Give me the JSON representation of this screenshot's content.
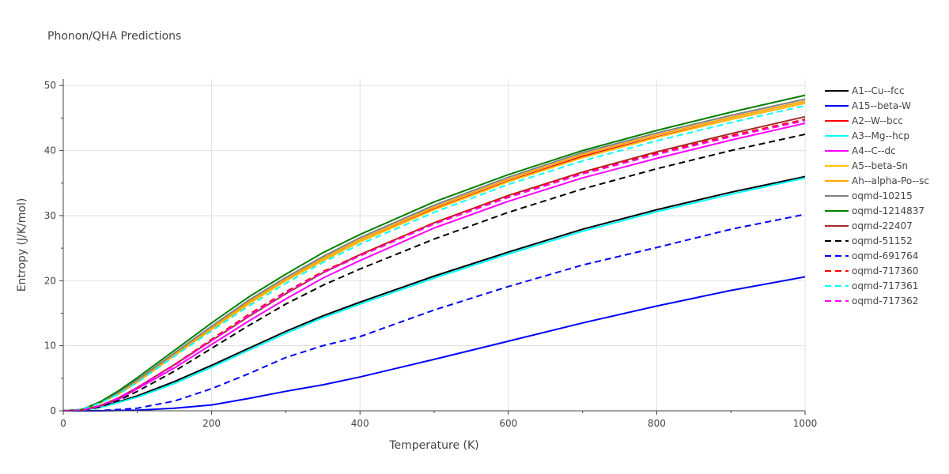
{
  "chart_data": {
    "type": "line",
    "title": "Phonon/QHA Predictions",
    "xlabel": "Temperature (K)",
    "ylabel": "Entropy (J/K/mol)",
    "xlim": [
      0,
      1000
    ],
    "ylim": [
      0,
      51
    ],
    "x_ticks": [
      0,
      200,
      400,
      600,
      800,
      1000
    ],
    "y_ticks": [
      0,
      10,
      20,
      30,
      40,
      50
    ],
    "grid": true,
    "legend_position": "right",
    "x": [
      0,
      25,
      50,
      75,
      100,
      150,
      200,
      250,
      300,
      350,
      400,
      500,
      600,
      700,
      800,
      900,
      1000
    ],
    "series": [
      {
        "name": "A1--Cu--fcc",
        "color": "#000000",
        "dash": "solid",
        "values": [
          0,
          0.1,
          0.6,
          1.4,
          2.3,
          4.5,
          7.0,
          9.6,
          12.2,
          14.6,
          16.7,
          20.7,
          24.4,
          27.9,
          30.9,
          33.6,
          36.0
        ]
      },
      {
        "name": "A15--beta-W",
        "color": "#0000ff",
        "dash": "solid",
        "values": [
          0,
          0,
          0,
          0.05,
          0.1,
          0.4,
          0.9,
          1.9,
          3.0,
          4.0,
          5.2,
          7.9,
          10.7,
          13.5,
          16.1,
          18.5,
          20.6
        ]
      },
      {
        "name": "A2--W--bcc",
        "color": "#ff0000",
        "dash": "solid",
        "values": [
          0,
          0.2,
          1.3,
          2.8,
          4.6,
          8.6,
          12.6,
          16.6,
          20.0,
          23.1,
          26.0,
          31.0,
          35.3,
          39.1,
          42.1,
          44.8,
          47.3
        ]
      },
      {
        "name": "A3--Mg--hcp",
        "color": "#00ffff",
        "dash": "solid",
        "values": [
          0,
          0.1,
          0.5,
          1.3,
          2.1,
          4.2,
          6.7,
          9.3,
          11.9,
          14.3,
          16.4,
          20.4,
          24.1,
          27.6,
          30.6,
          33.3,
          35.8
        ]
      },
      {
        "name": "A4--C--dc",
        "color": "#ff00ff",
        "dash": "solid",
        "values": [
          0,
          0.1,
          0.7,
          1.8,
          3.4,
          6.6,
          10.2,
          13.8,
          17.2,
          20.4,
          23.1,
          28.1,
          32.2,
          35.8,
          38.8,
          41.6,
          44.2
        ]
      },
      {
        "name": "A5--beta-Sn",
        "color": "#ffbf00",
        "dash": "solid",
        "values": [
          0,
          0.2,
          1.2,
          2.6,
          4.4,
          8.5,
          12.5,
          16.4,
          20.0,
          23.1,
          26.0,
          30.9,
          35.2,
          38.9,
          42.0,
          44.8,
          47.3
        ]
      },
      {
        "name": "Ah--alpha-Po--sc",
        "color": "#ffa500",
        "dash": "solid",
        "values": [
          0,
          0.2,
          1.2,
          2.7,
          4.5,
          8.6,
          12.7,
          16.7,
          20.2,
          23.4,
          26.3,
          31.3,
          35.6,
          39.4,
          42.4,
          45.1,
          47.6
        ]
      },
      {
        "name": "oqmd-10215",
        "color": "#808080",
        "dash": "solid",
        "values": [
          0,
          0.2,
          1.3,
          2.9,
          4.8,
          8.9,
          13.0,
          17.0,
          20.5,
          23.7,
          26.6,
          31.6,
          35.9,
          39.7,
          42.7,
          45.4,
          47.9
        ]
      },
      {
        "name": "oqmd-1214837",
        "color": "#008000",
        "dash": "solid",
        "values": [
          0,
          0.2,
          1.4,
          3.1,
          5.1,
          9.3,
          13.5,
          17.5,
          21.0,
          24.3,
          27.1,
          32.1,
          36.3,
          40.0,
          43.1,
          45.9,
          48.5
        ]
      },
      {
        "name": "oqmd-22407",
        "color": "#a52a2a",
        "dash": "solid",
        "values": [
          0,
          0.1,
          0.8,
          2.0,
          3.6,
          7.1,
          10.8,
          14.5,
          18.0,
          21.2,
          24.0,
          28.9,
          33.1,
          36.7,
          39.8,
          42.6,
          45.2
        ]
      },
      {
        "name": "oqmd-51152",
        "color": "#000000",
        "dash": "dash",
        "values": [
          0,
          0.1,
          0.6,
          1.6,
          3.0,
          6.1,
          9.6,
          13.1,
          16.4,
          19.3,
          21.8,
          26.4,
          30.5,
          34.1,
          37.2,
          40.0,
          42.5
        ]
      },
      {
        "name": "oqmd-691764",
        "color": "#0000ff",
        "dash": "dash",
        "values": [
          0,
          0,
          0.05,
          0.2,
          0.4,
          1.5,
          3.4,
          5.7,
          8.2,
          10.0,
          11.4,
          15.5,
          19.1,
          22.4,
          25.1,
          27.9,
          30.2
        ]
      },
      {
        "name": "oqmd-717360",
        "color": "#ff0000",
        "dash": "dash",
        "values": [
          0,
          0.1,
          0.8,
          2.0,
          3.6,
          7.1,
          11.0,
          14.8,
          18.3,
          21.4,
          24.0,
          28.9,
          33.0,
          36.6,
          39.6,
          42.3,
          44.8
        ]
      },
      {
        "name": "oqmd-717361",
        "color": "#00ffff",
        "dash": "dash",
        "values": [
          0,
          0.2,
          1.2,
          2.6,
          4.4,
          8.4,
          12.3,
          16.1,
          19.6,
          22.8,
          25.6,
          30.5,
          34.8,
          38.4,
          41.5,
          44.3,
          46.9
        ]
      },
      {
        "name": "oqmd-717362",
        "color": "#ff00ff",
        "dash": "dash",
        "values": [
          0,
          0.1,
          0.8,
          2.0,
          3.6,
          7.0,
          10.8,
          14.6,
          18.1,
          21.2,
          23.8,
          28.7,
          32.8,
          36.4,
          39.4,
          42.1,
          44.6
        ]
      }
    ]
  }
}
